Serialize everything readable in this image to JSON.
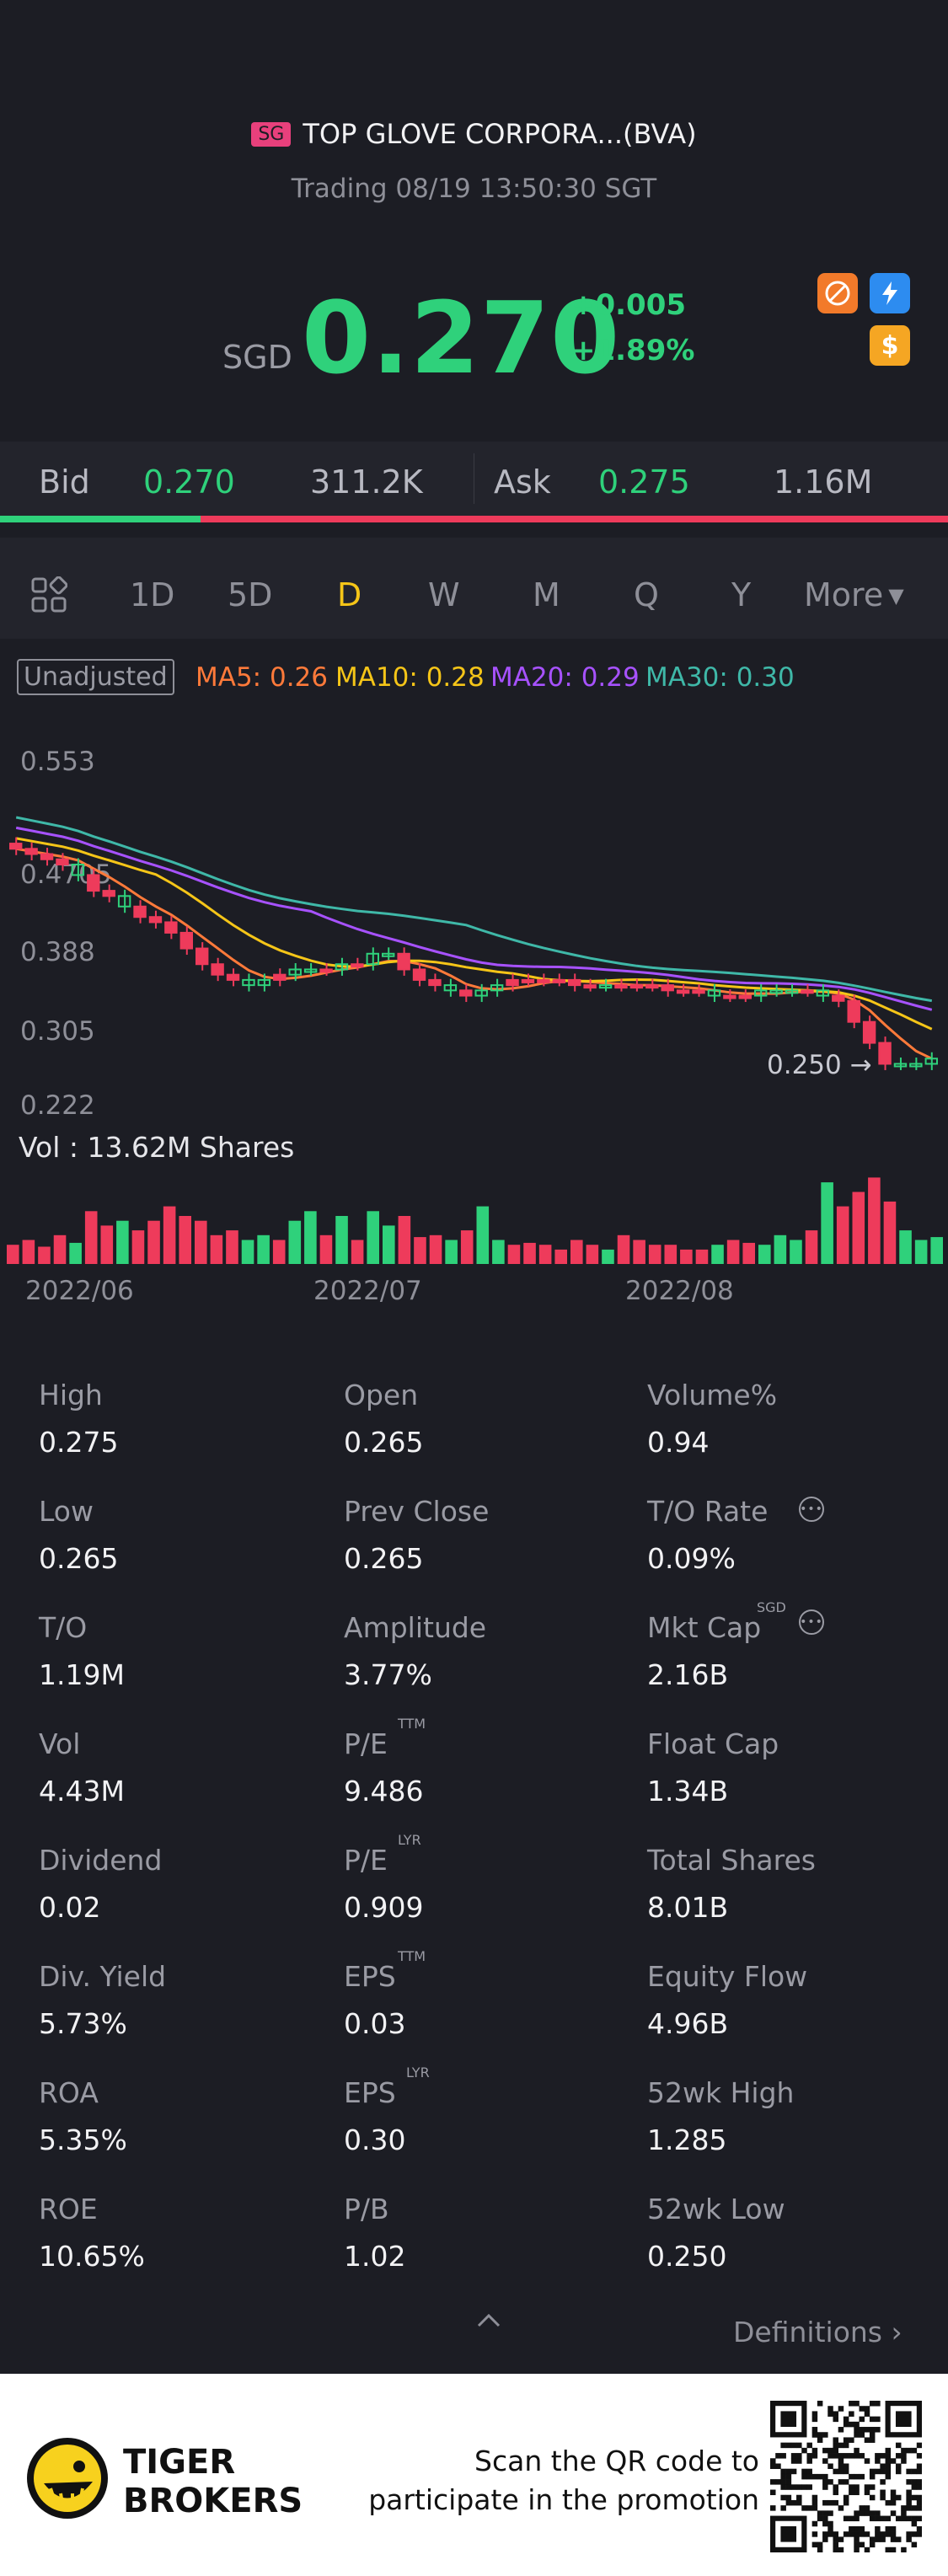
{
  "header": {
    "market_badge": "SG",
    "title": "TOP GLOVE CORPORA...(BVA)",
    "status": "Trading 08/19 13:50:30 SGT"
  },
  "quote": {
    "currency": "SGD",
    "price": "0.270",
    "change": "+0.005",
    "change_pct": "+1.89%",
    "up_color": "#2fd17b",
    "down_color": "#ee3b5b",
    "icons": [
      "no-short-icon",
      "lightning-icon",
      "dollar-icon"
    ],
    "icon_labels": {
      "dollar": "$"
    }
  },
  "bidask": {
    "bid_label": "Bid",
    "bid_price": "0.270",
    "bid_size": "311.2K",
    "ask_label": "Ask",
    "ask_price": "0.275",
    "ask_size": "1.16M",
    "bid_ratio": 0.21
  },
  "periods": {
    "items": [
      "1D",
      "5D",
      "D",
      "W",
      "M",
      "Q",
      "Y"
    ],
    "active": "D",
    "more": "More"
  },
  "indicators": {
    "adjust": "Unadjusted",
    "ma5": "MA5: 0.26",
    "ma10": "MA10: 0.28",
    "ma20": "MA20: 0.29",
    "ma30": "MA30: 0.30",
    "colors": {
      "ma5": "#ff7a3a",
      "ma10": "#f5c518",
      "ma20": "#a752ff",
      "ma30": "#3fb8a8"
    }
  },
  "chart_data": {
    "type": "candlestick",
    "y_ticks": [
      "0.553",
      "0.4705",
      "0.388",
      "0.305",
      "0.222"
    ],
    "ylim": [
      0.222,
      0.553
    ],
    "x_ticks": [
      "2022/06",
      "2022/07",
      "2022/08"
    ],
    "low_marker": "0.250",
    "volume_label": "Vol  : 13.62M Shares",
    "closes": [
      0.47,
      0.465,
      0.46,
      0.455,
      0.445,
      0.43,
      0.425,
      0.415,
      0.405,
      0.4,
      0.39,
      0.375,
      0.36,
      0.35,
      0.345,
      0.34,
      0.345,
      0.35,
      0.355,
      0.355,
      0.355,
      0.36,
      0.36,
      0.37,
      0.37,
      0.355,
      0.345,
      0.34,
      0.335,
      0.33,
      0.335,
      0.34,
      0.345,
      0.345,
      0.345,
      0.345,
      0.34,
      0.34,
      0.34,
      0.34,
      0.34,
      0.34,
      0.335,
      0.335,
      0.335,
      0.33,
      0.33,
      0.33,
      0.335,
      0.335,
      0.335,
      0.335,
      0.33,
      0.325,
      0.305,
      0.285,
      0.265,
      0.265,
      0.265,
      0.27
    ],
    "volumes": [
      0.2,
      0.25,
      0.18,
      0.3,
      0.22,
      0.55,
      0.4,
      0.45,
      0.35,
      0.45,
      0.6,
      0.5,
      0.45,
      0.3,
      0.35,
      0.25,
      0.3,
      0.25,
      0.45,
      0.55,
      0.3,
      0.5,
      0.25,
      0.55,
      0.4,
      0.5,
      0.28,
      0.3,
      0.25,
      0.35,
      0.6,
      0.25,
      0.2,
      0.22,
      0.2,
      0.15,
      0.25,
      0.2,
      0.15,
      0.3,
      0.25,
      0.2,
      0.2,
      0.15,
      0.15,
      0.2,
      0.25,
      0.22,
      0.2,
      0.3,
      0.25,
      0.35,
      0.85,
      0.6,
      0.75,
      0.9,
      0.65,
      0.35,
      0.25,
      0.28
    ],
    "up": [
      false,
      false,
      false,
      false,
      true,
      false,
      false,
      true,
      false,
      false,
      false,
      false,
      false,
      false,
      false,
      true,
      true,
      false,
      true,
      true,
      false,
      true,
      false,
      true,
      true,
      false,
      false,
      false,
      true,
      false,
      true,
      true,
      false,
      false,
      false,
      false,
      false,
      false,
      true,
      false,
      false,
      false,
      false,
      false,
      false,
      true,
      false,
      false,
      true,
      true,
      true,
      false,
      true,
      false,
      false,
      false,
      false,
      true,
      true,
      true
    ]
  },
  "stats": [
    {
      "label": "High",
      "value": "0.275"
    },
    {
      "label": "Open",
      "value": "0.265"
    },
    {
      "label": "Volume%",
      "value": "0.94"
    },
    {
      "label": "Low",
      "value": "0.265"
    },
    {
      "label": "Prev Close",
      "value": "0.265"
    },
    {
      "label": "T/O Rate",
      "value": "0.09%"
    },
    {
      "label": "T/O",
      "value": "1.19M"
    },
    {
      "label": "Amplitude",
      "value": "3.77%"
    },
    {
      "label": "Mkt Cap",
      "value": "2.16B",
      "sup": "SGD"
    },
    {
      "label": "Vol",
      "value": "4.43M"
    },
    {
      "label": "P/E",
      "value": "9.486",
      "sup": "TTM"
    },
    {
      "label": "Float Cap",
      "value": "1.34B"
    },
    {
      "label": "Dividend",
      "value": "0.02"
    },
    {
      "label": "P/E",
      "value": "0.909",
      "sup": "LYR"
    },
    {
      "label": "Total Shares",
      "value": "8.01B"
    },
    {
      "label": "Div. Yield",
      "value": "5.73%"
    },
    {
      "label": "EPS",
      "value": "0.03",
      "sup": "TTM"
    },
    {
      "label": "Equity Flow",
      "value": "4.96B"
    },
    {
      "label": "ROA",
      "value": "5.35%"
    },
    {
      "label": "EPS",
      "value": "0.30",
      "sup": "LYR"
    },
    {
      "label": "52wk High",
      "value": "1.285"
    },
    {
      "label": "ROE",
      "value": "10.65%"
    },
    {
      "label": "P/B",
      "value": "1.02"
    },
    {
      "label": "52wk Low",
      "value": "0.250"
    }
  ],
  "definitions": "Definitions",
  "footer": {
    "brand_line1": "TIGER",
    "brand_line2": "BROKERS",
    "promo_line1": "Scan the QR code to",
    "promo_line2": "participate in the promotion"
  }
}
